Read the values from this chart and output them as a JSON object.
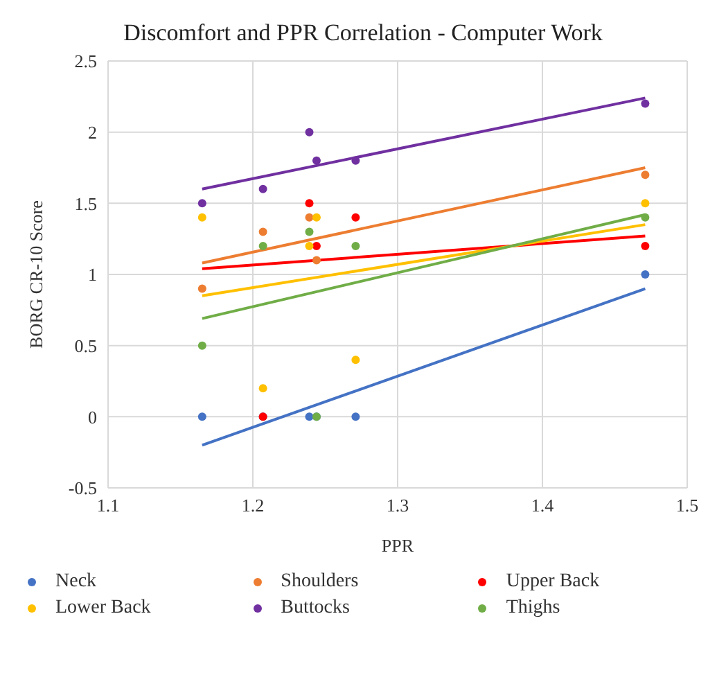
{
  "chart_data": {
    "type": "scatter",
    "title": "Discomfort and PPR Correlation - Computer Work",
    "xlabel": "PPR",
    "ylabel": "BORG CR-10 Score",
    "x": [
      1.165,
      1.207,
      1.239,
      1.244,
      1.271,
      1.471
    ],
    "series": [
      {
        "name": "Neck",
        "color": "#4472c4",
        "values": [
          0,
          0,
          0,
          0,
          0,
          1.0
        ]
      },
      {
        "name": "Shoulders",
        "color": "#ed7d31",
        "values": [
          0.9,
          1.3,
          1.4,
          1.1,
          null,
          1.7
        ]
      },
      {
        "name": "Upper Back",
        "color": "#ff0000",
        "values": [
          null,
          0,
          1.5,
          1.2,
          1.4,
          1.2
        ]
      },
      {
        "name": "Lower Back",
        "color": "#ffc000",
        "values": [
          1.4,
          0.2,
          1.2,
          1.4,
          0.4,
          1.5
        ]
      },
      {
        "name": "Buttocks",
        "color": "#7030a0",
        "values": [
          1.5,
          1.6,
          2.0,
          1.8,
          1.8,
          2.2
        ]
      },
      {
        "name": "Thighs",
        "color": "#70ad47",
        "values": [
          0.5,
          1.2,
          1.3,
          0,
          1.2,
          1.4
        ]
      },
      {
        "type": "line",
        "marker": "none",
        "color": "#4472c4",
        "values": [
          -0.2,
          null,
          null,
          null,
          null,
          0.9
        ]
      },
      {
        "type": "line",
        "marker": "none",
        "color": "#ed7d31",
        "values": [
          1.08,
          null,
          null,
          null,
          null,
          1.75
        ]
      },
      {
        "type": "line",
        "marker": "none",
        "color": "#ff0000",
        "values": [
          1.04,
          null,
          null,
          null,
          null,
          1.27
        ]
      },
      {
        "type": "line",
        "marker": "none",
        "color": "#ffc000",
        "values": [
          0.85,
          null,
          null,
          null,
          null,
          1.35
        ]
      },
      {
        "type": "line",
        "marker": "none",
        "color": "#7030a0",
        "values": [
          1.6,
          null,
          null,
          null,
          null,
          2.24
        ]
      },
      {
        "type": "line",
        "marker": "none",
        "color": "#70ad47",
        "values": [
          0.69,
          null,
          null,
          null,
          null,
          1.42
        ]
      }
    ],
    "xlim": [
      1.1,
      1.5
    ],
    "xticks": [
      1.1,
      1.2,
      1.3,
      1.4,
      1.5
    ],
    "ylim": [
      -0.5,
      2.5
    ],
    "yticks": [
      -0.5,
      0,
      0.5,
      1,
      1.5,
      2,
      2.5
    ],
    "grid": true,
    "legend": "bottom",
    "marker": "circle"
  }
}
